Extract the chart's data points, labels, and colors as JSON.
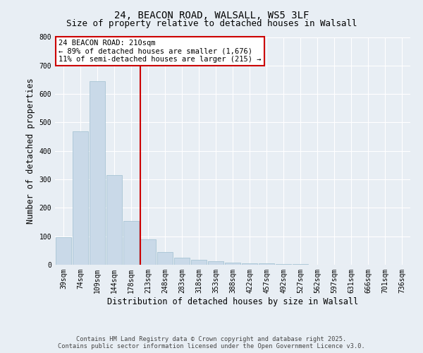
{
  "title_line1": "24, BEACON ROAD, WALSALL, WS5 3LF",
  "title_line2": "Size of property relative to detached houses in Walsall",
  "xlabel": "Distribution of detached houses by size in Walsall",
  "ylabel": "Number of detached properties",
  "categories": [
    "39sqm",
    "74sqm",
    "109sqm",
    "144sqm",
    "178sqm",
    "213sqm",
    "248sqm",
    "283sqm",
    "318sqm",
    "353sqm",
    "388sqm",
    "422sqm",
    "457sqm",
    "492sqm",
    "527sqm",
    "562sqm",
    "597sqm",
    "631sqm",
    "666sqm",
    "701sqm",
    "736sqm"
  ],
  "values": [
    97,
    470,
    645,
    315,
    155,
    90,
    45,
    25,
    18,
    12,
    8,
    6,
    4,
    3,
    2,
    1,
    1,
    1,
    0,
    0,
    0
  ],
  "bar_color": "#c9d9e8",
  "bar_edge_color": "#a8c4d4",
  "highlight_line_color": "#cc0000",
  "annotation_text": "24 BEACON ROAD: 210sqm\n← 89% of detached houses are smaller (1,676)\n11% of semi-detached houses are larger (215) →",
  "annotation_box_color": "#cc0000",
  "ylim": [
    0,
    800
  ],
  "yticks": [
    0,
    100,
    200,
    300,
    400,
    500,
    600,
    700,
    800
  ],
  "background_color": "#e8eef4",
  "plot_bg_color": "#e8eef4",
  "footer_line1": "Contains HM Land Registry data © Crown copyright and database right 2025.",
  "footer_line2": "Contains public sector information licensed under the Open Government Licence v3.0.",
  "title_fontsize": 10,
  "subtitle_fontsize": 9,
  "tick_fontsize": 7,
  "label_fontsize": 8.5,
  "annotation_fontsize": 7.5
}
